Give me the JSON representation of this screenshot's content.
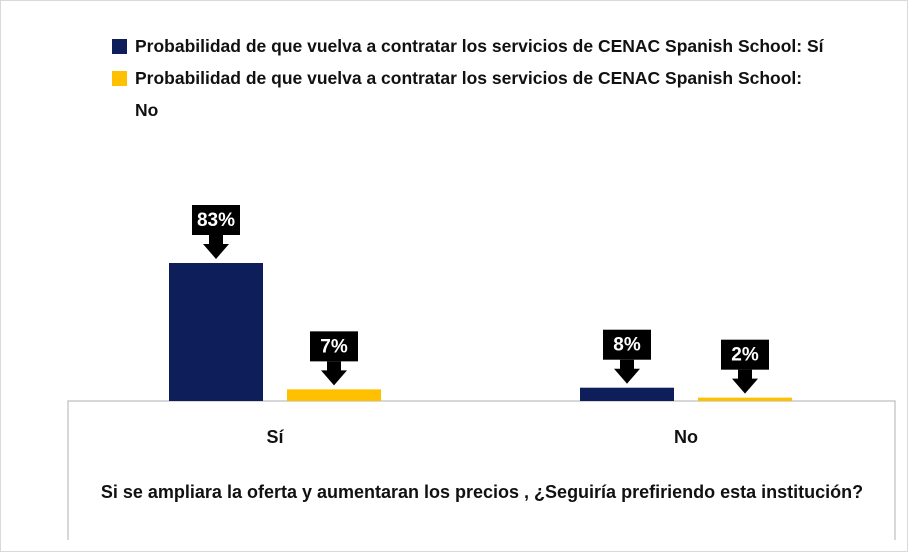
{
  "chart_data": {
    "type": "bar",
    "categories": [
      "Sí",
      "No"
    ],
    "series": [
      {
        "name": "Probabilidad de que vuelva a contratar los servicios de CENAC Spanish School: Sí",
        "color": "#0e1e5b",
        "values": [
          83,
          8
        ],
        "value_labels": [
          "83%",
          "8%"
        ]
      },
      {
        "name": "Probabilidad de que vuelva a contratar los servicios de CENAC Spanish School: No",
        "color": "#ffc000",
        "values": [
          7,
          2
        ],
        "value_labels": [
          "7%",
          "2%"
        ]
      }
    ],
    "x_label": "Si se ampliara la oferta y aumentaran los precios , ¿Seguiría prefiriendo esta institución?",
    "legend": "top"
  }
}
